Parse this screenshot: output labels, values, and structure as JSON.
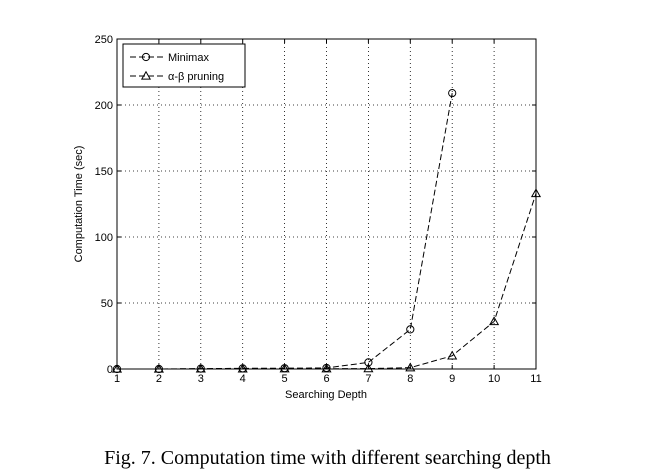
{
  "caption": "Fig. 7.  Computation time with different searching depth",
  "chart_data": {
    "type": "line",
    "x": [
      1,
      2,
      3,
      4,
      5,
      6,
      7,
      8,
      9,
      10,
      11
    ],
    "xlabel": "Searching Depth",
    "ylabel": "Computation Time (sec)",
    "xlim": [
      1,
      11
    ],
    "ylim": [
      0,
      250
    ],
    "xticks": [
      "1",
      "2",
      "3",
      "4",
      "5",
      "6",
      "7",
      "8",
      "9",
      "10",
      "11"
    ],
    "yticks": [
      "0",
      "50",
      "100",
      "150",
      "200",
      "250"
    ],
    "grid": true,
    "legend_position": "top-left",
    "series": [
      {
        "name": "Minimax",
        "marker": "circle",
        "line_style": "dashed",
        "color": "#000000",
        "x": [
          1,
          2,
          3,
          4,
          5,
          6,
          7,
          8,
          9
        ],
        "values": [
          0,
          0,
          0.3,
          0.5,
          0.6,
          0.8,
          5,
          30,
          209
        ]
      },
      {
        "name": "α-β pruning",
        "marker": "triangle",
        "line_style": "dashed",
        "color": "#000000",
        "x": [
          1,
          2,
          3,
          4,
          5,
          6,
          7,
          8,
          9,
          10,
          11
        ],
        "values": [
          0,
          0,
          0.1,
          0.1,
          0.2,
          0.2,
          0.3,
          1,
          10,
          36,
          133
        ]
      }
    ]
  }
}
